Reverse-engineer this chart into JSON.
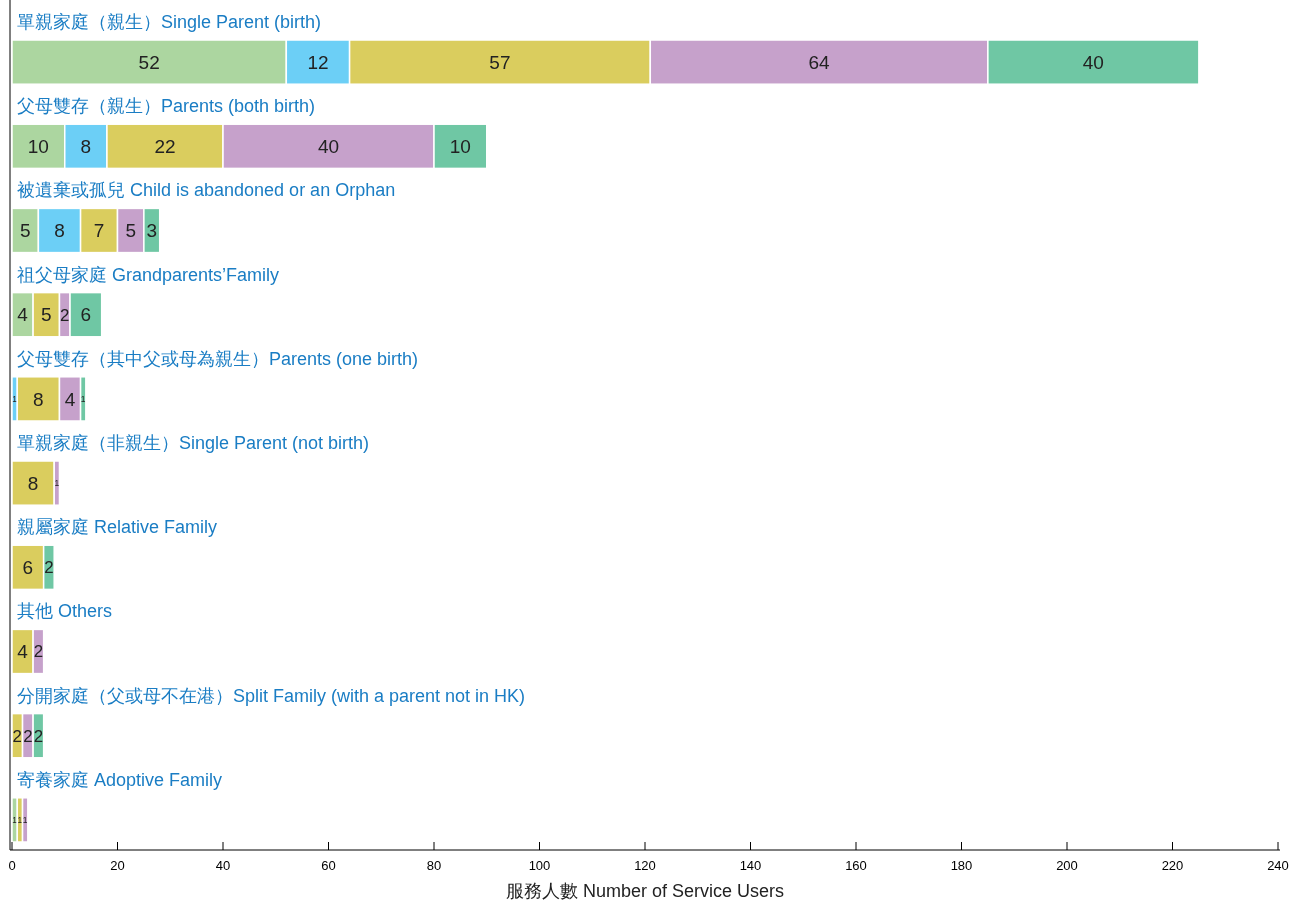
{
  "chart_data": {
    "type": "bar",
    "orientation": "horizontal",
    "stacked": true,
    "data_labels": true,
    "xlabel": "服務人數 Number of Service Users",
    "categories": [
      "單親家庭（親生）Single Parent (birth)",
      "父母雙存（親生）Parents (both birth)",
      "被遺棄或孤兒 Child is abandoned or an Orphan",
      "祖父母家庭 Grandparents’Family",
      "父母雙存（其中父或母為親生）Parents (one birth)",
      "單親家庭（非親生）Single Parent (not birth)",
      "親屬家庭 Relative Family",
      "其他 Others",
      "分開家庭（父或母不在港）Split Family (with a parent not in HK)",
      "寄養家庭 Adoptive Family"
    ],
    "series": [
      {
        "color": "#acd6a0",
        "values": [
          52,
          10,
          5,
          4,
          null,
          null,
          null,
          null,
          null,
          1
        ]
      },
      {
        "color": "#6ccff6",
        "values": [
          12,
          8,
          8,
          null,
          1,
          null,
          null,
          null,
          null,
          null
        ]
      },
      {
        "color": "#dacd5e",
        "values": [
          57,
          22,
          7,
          5,
          8,
          8,
          6,
          4,
          2,
          1
        ]
      },
      {
        "color": "#c6a1cb",
        "values": [
          64,
          40,
          5,
          2,
          4,
          1,
          null,
          2,
          2,
          1
        ]
      },
      {
        "color": "#6fc7a4",
        "values": [
          40,
          10,
          3,
          6,
          1,
          null,
          2,
          null,
          2,
          null
        ]
      }
    ],
    "xlim": [
      0,
      240
    ],
    "xticks": [
      0,
      20,
      40,
      60,
      80,
      100,
      120,
      140,
      160,
      180,
      200,
      220,
      240
    ]
  }
}
